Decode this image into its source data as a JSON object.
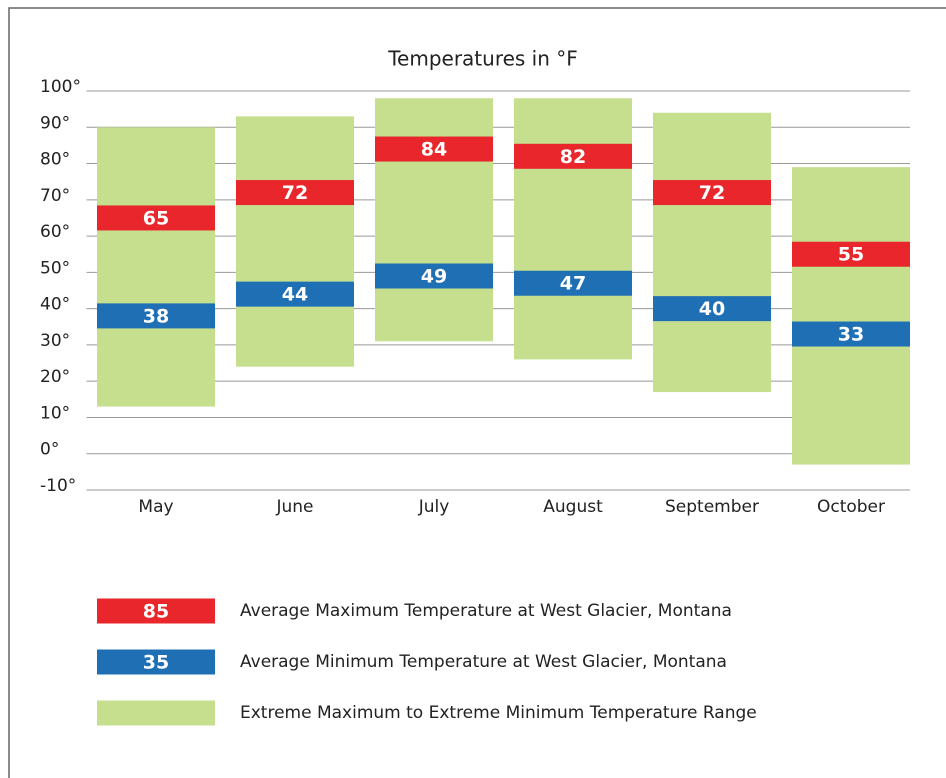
{
  "chart_data": {
    "type": "range",
    "title": "Temperatures in °F",
    "categories": [
      "May",
      "June",
      "July",
      "August",
      "September",
      "October"
    ],
    "ylim": [
      -10,
      100
    ],
    "yticks": [
      {
        "value": 100,
        "label": "100°"
      },
      {
        "value": 90,
        "label": "90°"
      },
      {
        "value": 80,
        "label": "80°"
      },
      {
        "value": 70,
        "label": "70°"
      },
      {
        "value": 60,
        "label": "60°"
      },
      {
        "value": 50,
        "label": "50°"
      },
      {
        "value": 40,
        "label": "40°"
      },
      {
        "value": 30,
        "label": "30°"
      },
      {
        "value": 20,
        "label": "20°"
      },
      {
        "value": 10,
        "label": "10°"
      },
      {
        "value": 0,
        "label": "0°"
      },
      {
        "value": -10,
        "label": "-10°"
      }
    ],
    "grid": true,
    "series": [
      {
        "name": "Average Maximum Temperature at West Glacier, Montana",
        "color": "#e8262b",
        "legend_label": "85",
        "values": [
          65,
          72,
          84,
          82,
          72,
          55
        ]
      },
      {
        "name": "Average Minimum Temperature at West Glacier, Montana",
        "color": "#1f6fb5",
        "legend_label": "35",
        "values": [
          38,
          44,
          49,
          47,
          40,
          33
        ]
      },
      {
        "name": "Extreme Maximum to Extreme Minimum Temperature Range",
        "color": "#c5df8f",
        "low": [
          13,
          24,
          31,
          26,
          17,
          -3
        ],
        "high": [
          90,
          93,
          98,
          98,
          94,
          79
        ]
      }
    ]
  }
}
